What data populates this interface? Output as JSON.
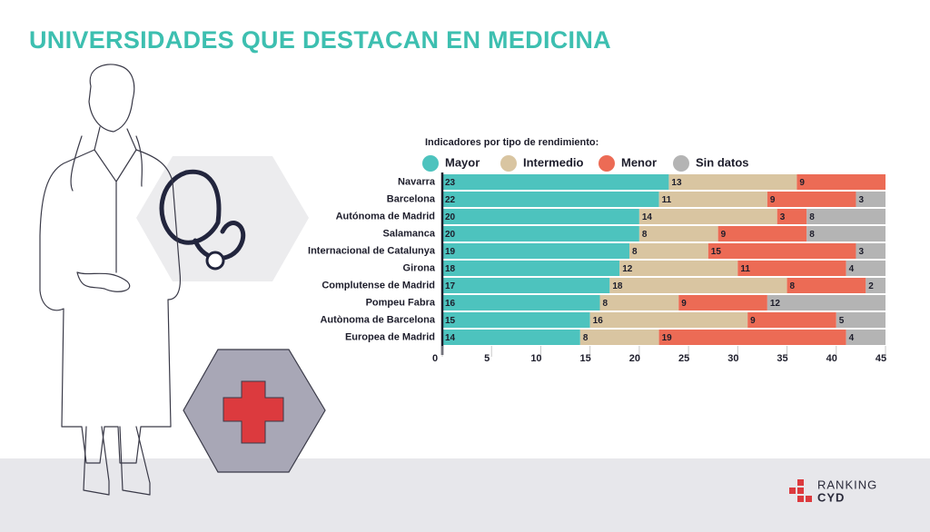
{
  "chart_data": {
    "type": "stacked-bar-horizontal",
    "title": "UNIVERSIDADES QUE DESTACAN EN MEDICINA",
    "subtitle": "Indicadores por tipo de rendimiento:",
    "categories": [
      "Navarra",
      "Barcelona",
      "Autónoma de Madrid",
      "Salamanca",
      "Internacional de Catalunya",
      "Girona",
      "Complutense de Madrid",
      "Pompeu Fabra",
      "Autònoma de Barcelona",
      "Europea de Madrid"
    ],
    "series": [
      {
        "name": "Mayor",
        "color": "#4dc3be",
        "values": [
          23,
          22,
          20,
          20,
          19,
          18,
          17,
          16,
          15,
          14
        ]
      },
      {
        "name": "Intermedio",
        "color": "#d9c5a1",
        "values": [
          13,
          11,
          14,
          8,
          8,
          12,
          18,
          8,
          16,
          8
        ]
      },
      {
        "name": "Menor",
        "color": "#ec6b55",
        "values": [
          9,
          9,
          3,
          9,
          15,
          11,
          8,
          9,
          9,
          19
        ]
      },
      {
        "name": "Sin datos",
        "color": "#b4b4b4",
        "values": [
          null,
          3,
          8,
          8,
          3,
          4,
          2,
          12,
          5,
          4
        ]
      }
    ],
    "xlim": [
      0,
      45
    ],
    "xticks": [
      0,
      5,
      10,
      15,
      20,
      25,
      30,
      35,
      40,
      45
    ]
  },
  "logo": {
    "line1": "RANKING",
    "line2": "CYD"
  }
}
